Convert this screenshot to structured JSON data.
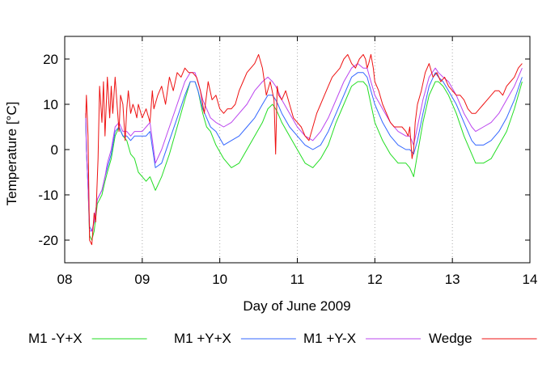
{
  "chart_data": {
    "type": "line",
    "title": "",
    "xlabel": "Day of June 2009",
    "ylabel": "Temperature [°C]",
    "xlim": [
      8,
      14
    ],
    "ylim": [
      -25,
      25
    ],
    "xticks": [
      8,
      9,
      10,
      11,
      12,
      13,
      14
    ],
    "xtick_labels": [
      "08",
      "09",
      "10",
      "11",
      "12",
      "13",
      "14"
    ],
    "yticks": [
      -20,
      -10,
      0,
      10,
      20
    ],
    "ytick_labels": [
      "-20",
      "-10",
      "0",
      "10",
      "20"
    ],
    "grid": "vertical dotted at each day",
    "legend_position": "bottom",
    "series": [
      {
        "name": "M1 -Y+X",
        "color": "#22dd22",
        "x": [
          8.27,
          8.28,
          8.3,
          8.32,
          8.35,
          8.38,
          8.42,
          8.48,
          8.52,
          8.55,
          8.6,
          8.65,
          8.7,
          8.75,
          8.8,
          8.85,
          8.9,
          8.95,
          9.0,
          9.05,
          9.1,
          9.17,
          9.25,
          9.35,
          9.45,
          9.55,
          9.62,
          9.68,
          9.72,
          9.78,
          9.83,
          9.88,
          9.95,
          10.05,
          10.15,
          10.25,
          10.35,
          10.45,
          10.55,
          10.62,
          10.68,
          10.72,
          10.75,
          10.8,
          10.9,
          11.0,
          11.1,
          11.2,
          11.3,
          11.4,
          11.5,
          11.6,
          11.7,
          11.78,
          11.85,
          11.9,
          11.95,
          12.0,
          12.1,
          12.2,
          12.3,
          12.4,
          12.45,
          12.5,
          12.55,
          12.62,
          12.7,
          12.78,
          12.82,
          12.88,
          12.95,
          13.05,
          13.15,
          13.25,
          13.3,
          13.4,
          13.5,
          13.6,
          13.7,
          13.8,
          13.9
        ],
        "values": [
          7,
          0,
          -8,
          -19,
          -20,
          -18,
          -12,
          -10,
          -7,
          -5,
          -2,
          3,
          5,
          3,
          2,
          -1,
          -2,
          -5,
          -6,
          -7,
          -6,
          -9,
          -6,
          -1,
          5,
          11,
          15,
          15,
          13,
          8,
          5,
          4,
          1,
          -2,
          -4,
          -3,
          0,
          3,
          6,
          9,
          10,
          9,
          8,
          6,
          3,
          0,
          -3,
          -4,
          -2,
          1,
          6,
          10,
          14,
          15,
          15,
          14,
          10,
          6,
          2,
          -1,
          -3,
          -3,
          -4,
          -6,
          -1,
          6,
          12,
          15,
          15,
          14,
          12,
          8,
          3,
          -1,
          -3,
          -3,
          -2,
          1,
          4,
          9,
          15
        ]
      },
      {
        "name": "M1 +Y+X",
        "color": "#3366ff",
        "x": [
          8.27,
          8.28,
          8.3,
          8.32,
          8.35,
          8.38,
          8.42,
          8.48,
          8.52,
          8.55,
          8.6,
          8.65,
          8.7,
          8.75,
          8.8,
          8.85,
          8.9,
          8.95,
          9.0,
          9.05,
          9.1,
          9.17,
          9.25,
          9.35,
          9.45,
          9.55,
          9.62,
          9.68,
          9.72,
          9.78,
          9.83,
          9.88,
          9.95,
          10.05,
          10.15,
          10.25,
          10.35,
          10.45,
          10.55,
          10.62,
          10.68,
          10.72,
          10.75,
          10.8,
          10.9,
          11.0,
          11.1,
          11.2,
          11.3,
          11.4,
          11.5,
          11.6,
          11.7,
          11.78,
          11.85,
          11.9,
          11.95,
          12.0,
          12.1,
          12.2,
          12.3,
          12.4,
          12.45,
          12.5,
          12.55,
          12.62,
          12.7,
          12.78,
          12.82,
          12.88,
          12.95,
          13.05,
          13.15,
          13.25,
          13.3,
          13.4,
          13.5,
          13.6,
          13.7,
          13.8,
          13.9
        ],
        "values": [
          8,
          0,
          -8,
          -17,
          -18,
          -16,
          -11,
          -9,
          -6,
          -4,
          -1,
          4,
          5,
          3,
          3,
          2,
          3,
          3,
          3,
          3,
          4,
          -4,
          -3,
          2,
          7,
          12,
          15,
          15,
          13,
          9,
          7,
          5,
          4,
          1,
          2,
          3,
          5,
          7,
          10,
          12,
          12,
          11,
          10,
          8,
          5,
          3,
          1,
          0,
          1,
          4,
          8,
          12,
          16,
          17,
          17,
          16,
          13,
          10,
          6,
          3,
          1,
          0,
          0,
          -1,
          2,
          8,
          14,
          17,
          16,
          15,
          13,
          10,
          6,
          2,
          1,
          1,
          2,
          4,
          7,
          11,
          16
        ]
      },
      {
        "name": "M1 +Y-X",
        "color": "#bb44ee",
        "x": [
          8.27,
          8.28,
          8.3,
          8.32,
          8.35,
          8.38,
          8.42,
          8.48,
          8.52,
          8.55,
          8.6,
          8.65,
          8.7,
          8.75,
          8.8,
          8.85,
          8.9,
          8.95,
          9.0,
          9.05,
          9.1,
          9.17,
          9.25,
          9.35,
          9.45,
          9.55,
          9.62,
          9.68,
          9.72,
          9.78,
          9.83,
          9.88,
          9.95,
          10.05,
          10.15,
          10.25,
          10.35,
          10.45,
          10.55,
          10.62,
          10.68,
          10.72,
          10.75,
          10.8,
          10.9,
          11.0,
          11.1,
          11.2,
          11.3,
          11.4,
          11.5,
          11.6,
          11.7,
          11.78,
          11.85,
          11.9,
          11.95,
          12.0,
          12.1,
          12.2,
          12.3,
          12.4,
          12.45,
          12.5,
          12.55,
          12.62,
          12.7,
          12.78,
          12.82,
          12.88,
          12.95,
          13.05,
          13.15,
          13.25,
          13.3,
          13.4,
          13.5,
          13.6,
          13.7,
          13.8,
          13.9
        ],
        "values": [
          8,
          0,
          -8,
          -18,
          -18,
          -16,
          -11,
          -9,
          -6,
          -3,
          0,
          5,
          6,
          4,
          4,
          3,
          4,
          4,
          4,
          5,
          6,
          -3,
          0,
          5,
          10,
          15,
          17,
          17,
          15,
          11,
          9,
          7,
          6,
          5,
          6,
          8,
          10,
          13,
          15,
          16,
          15,
          14,
          13,
          11,
          8,
          5,
          3,
          2,
          4,
          7,
          11,
          15,
          18,
          19,
          18,
          18,
          15,
          12,
          9,
          6,
          4,
          3,
          3,
          1,
          5,
          11,
          16,
          18,
          17,
          16,
          15,
          12,
          8,
          5,
          4,
          5,
          6,
          8,
          11,
          14,
          18
        ]
      },
      {
        "name": "Wedge",
        "color": "#ee1111",
        "x": [
          8.27,
          8.28,
          8.3,
          8.32,
          8.35,
          8.38,
          8.4,
          8.43,
          8.45,
          8.48,
          8.5,
          8.52,
          8.55,
          8.58,
          8.6,
          8.62,
          8.65,
          8.7,
          8.72,
          8.75,
          8.78,
          8.8,
          8.82,
          8.85,
          8.88,
          8.9,
          8.93,
          8.95,
          9.0,
          9.05,
          9.1,
          9.13,
          9.15,
          9.2,
          9.25,
          9.3,
          9.35,
          9.4,
          9.45,
          9.5,
          9.55,
          9.6,
          9.65,
          9.7,
          9.75,
          9.8,
          9.85,
          9.9,
          9.95,
          10.0,
          10.05,
          10.1,
          10.15,
          10.2,
          10.25,
          10.3,
          10.35,
          10.4,
          10.45,
          10.5,
          10.55,
          10.6,
          10.65,
          10.7,
          10.72,
          10.74,
          10.76,
          10.8,
          10.85,
          10.9,
          10.95,
          11.0,
          11.05,
          11.1,
          11.15,
          11.2,
          11.25,
          11.3,
          11.35,
          11.4,
          11.45,
          11.5,
          11.55,
          11.6,
          11.65,
          11.7,
          11.75,
          11.8,
          11.85,
          11.88,
          11.9,
          11.92,
          11.95,
          11.98,
          12.0,
          12.05,
          12.1,
          12.15,
          12.2,
          12.25,
          12.3,
          12.35,
          12.4,
          12.43,
          12.45,
          12.48,
          12.5,
          12.52,
          12.55,
          12.6,
          12.65,
          12.7,
          12.75,
          12.8,
          12.85,
          12.9,
          12.95,
          13.0,
          13.05,
          13.1,
          13.15,
          13.2,
          13.25,
          13.3,
          13.35,
          13.4,
          13.45,
          13.5,
          13.55,
          13.6,
          13.65,
          13.7,
          13.75,
          13.8,
          13.85,
          13.9
        ],
        "values": [
          7,
          12,
          3,
          -20,
          -21,
          -14,
          -16,
          -2,
          14,
          6,
          15,
          3,
          16,
          7,
          14,
          8,
          16,
          4,
          12,
          10,
          2,
          9,
          13,
          8,
          10,
          9,
          7,
          10,
          7,
          9,
          6,
          13,
          9,
          12,
          14,
          10,
          16,
          13,
          17,
          16,
          18,
          17,
          17,
          16,
          13,
          8,
          15,
          11,
          12,
          9,
          8,
          9,
          9,
          10,
          13,
          15,
          17,
          18,
          19,
          21,
          18,
          12,
          15,
          11,
          -1,
          14,
          12,
          11,
          13,
          10,
          7,
          6,
          5,
          3,
          2,
          5,
          8,
          10,
          12,
          14,
          16,
          17,
          18,
          20,
          21,
          19,
          18,
          20,
          21,
          20,
          18,
          19,
          21,
          18,
          15,
          13,
          10,
          8,
          6,
          5,
          5,
          5,
          4,
          3,
          5,
          -2,
          0,
          6,
          10,
          13,
          17,
          19,
          16,
          17,
          15,
          16,
          14,
          13,
          12,
          12,
          11,
          9,
          8,
          8,
          9,
          10,
          11,
          12,
          13,
          13,
          12,
          14,
          15,
          16,
          18,
          19
        ]
      }
    ]
  }
}
